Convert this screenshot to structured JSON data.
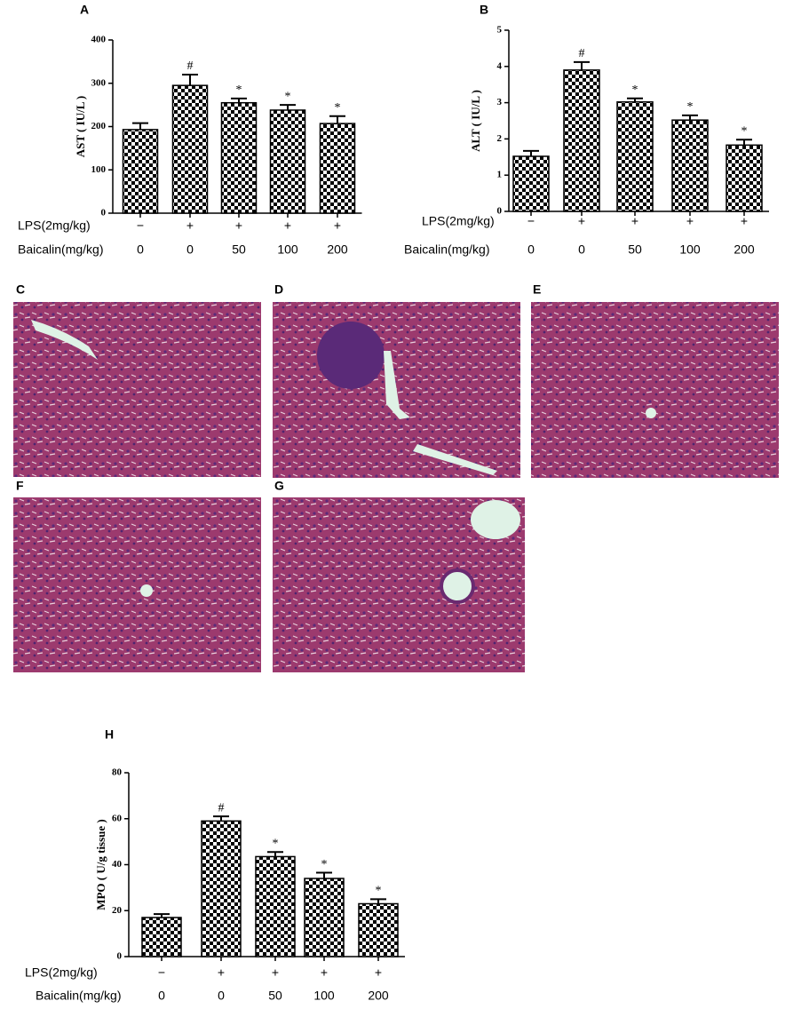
{
  "chart_data": [
    {
      "type": "bar",
      "panel": "A",
      "y_label": "AST ( IU/L )",
      "color": "#000000",
      "ylim": [
        0,
        400
      ],
      "yticks": [
        0,
        100,
        200,
        300,
        400
      ],
      "values": [
        193,
        295,
        255,
        238,
        207
      ],
      "errors": [
        15,
        25,
        10,
        12,
        17
      ],
      "annotations": [
        null,
        "#",
        "*",
        "*",
        "*"
      ],
      "rows": [
        {
          "name": "LPS(2mg/kg)",
          "labels": [
            "−",
            "+",
            "+",
            "+",
            "+"
          ]
        },
        {
          "name": "Baicalin(mg/kg)",
          "labels": [
            "0",
            "0",
            "50",
            "100",
            "200"
          ]
        }
      ]
    },
    {
      "type": "bar",
      "panel": "B",
      "y_label": "ALT ( IU/L )",
      "color": "#000000",
      "ylim": [
        0,
        5
      ],
      "yticks": [
        0,
        1,
        2,
        3,
        4,
        5
      ],
      "values": [
        1.52,
        3.9,
        3.02,
        2.52,
        1.83
      ],
      "errors": [
        0.15,
        0.22,
        0.1,
        0.13,
        0.15
      ],
      "annotations": [
        null,
        "#",
        "*",
        "*",
        "*"
      ],
      "rows": [
        {
          "name": "LPS(2mg/kg)",
          "labels": [
            "−",
            "+",
            "+",
            "+",
            "+"
          ]
        },
        {
          "name": "Baicalin(mg/kg)",
          "labels": [
            "0",
            "0",
            "50",
            "100",
            "200"
          ]
        }
      ]
    },
    {
      "type": "bar",
      "panel": "H",
      "y_label": "MPO ( U/g tissue )",
      "color": "#000000",
      "ylim": [
        0,
        80
      ],
      "yticks": [
        0,
        20,
        40,
        60,
        80
      ],
      "values": [
        17,
        59,
        43.5,
        34,
        23
      ],
      "errors": [
        1.5,
        2,
        2,
        2.5,
        2
      ],
      "annotations": [
        null,
        "#",
        "*",
        "*",
        "*"
      ],
      "rows": [
        {
          "name": "LPS(2mg/kg)",
          "labels": [
            "−",
            "+",
            "+",
            "+",
            "+"
          ]
        },
        {
          "name": "Baicalin(mg/kg)",
          "labels": [
            "0",
            "0",
            "50",
            "100",
            "200"
          ]
        }
      ]
    }
  ],
  "panels": [
    {
      "label": "C"
    },
    {
      "label": "D"
    },
    {
      "label": "E"
    },
    {
      "label": "F"
    },
    {
      "label": "G"
    }
  ]
}
